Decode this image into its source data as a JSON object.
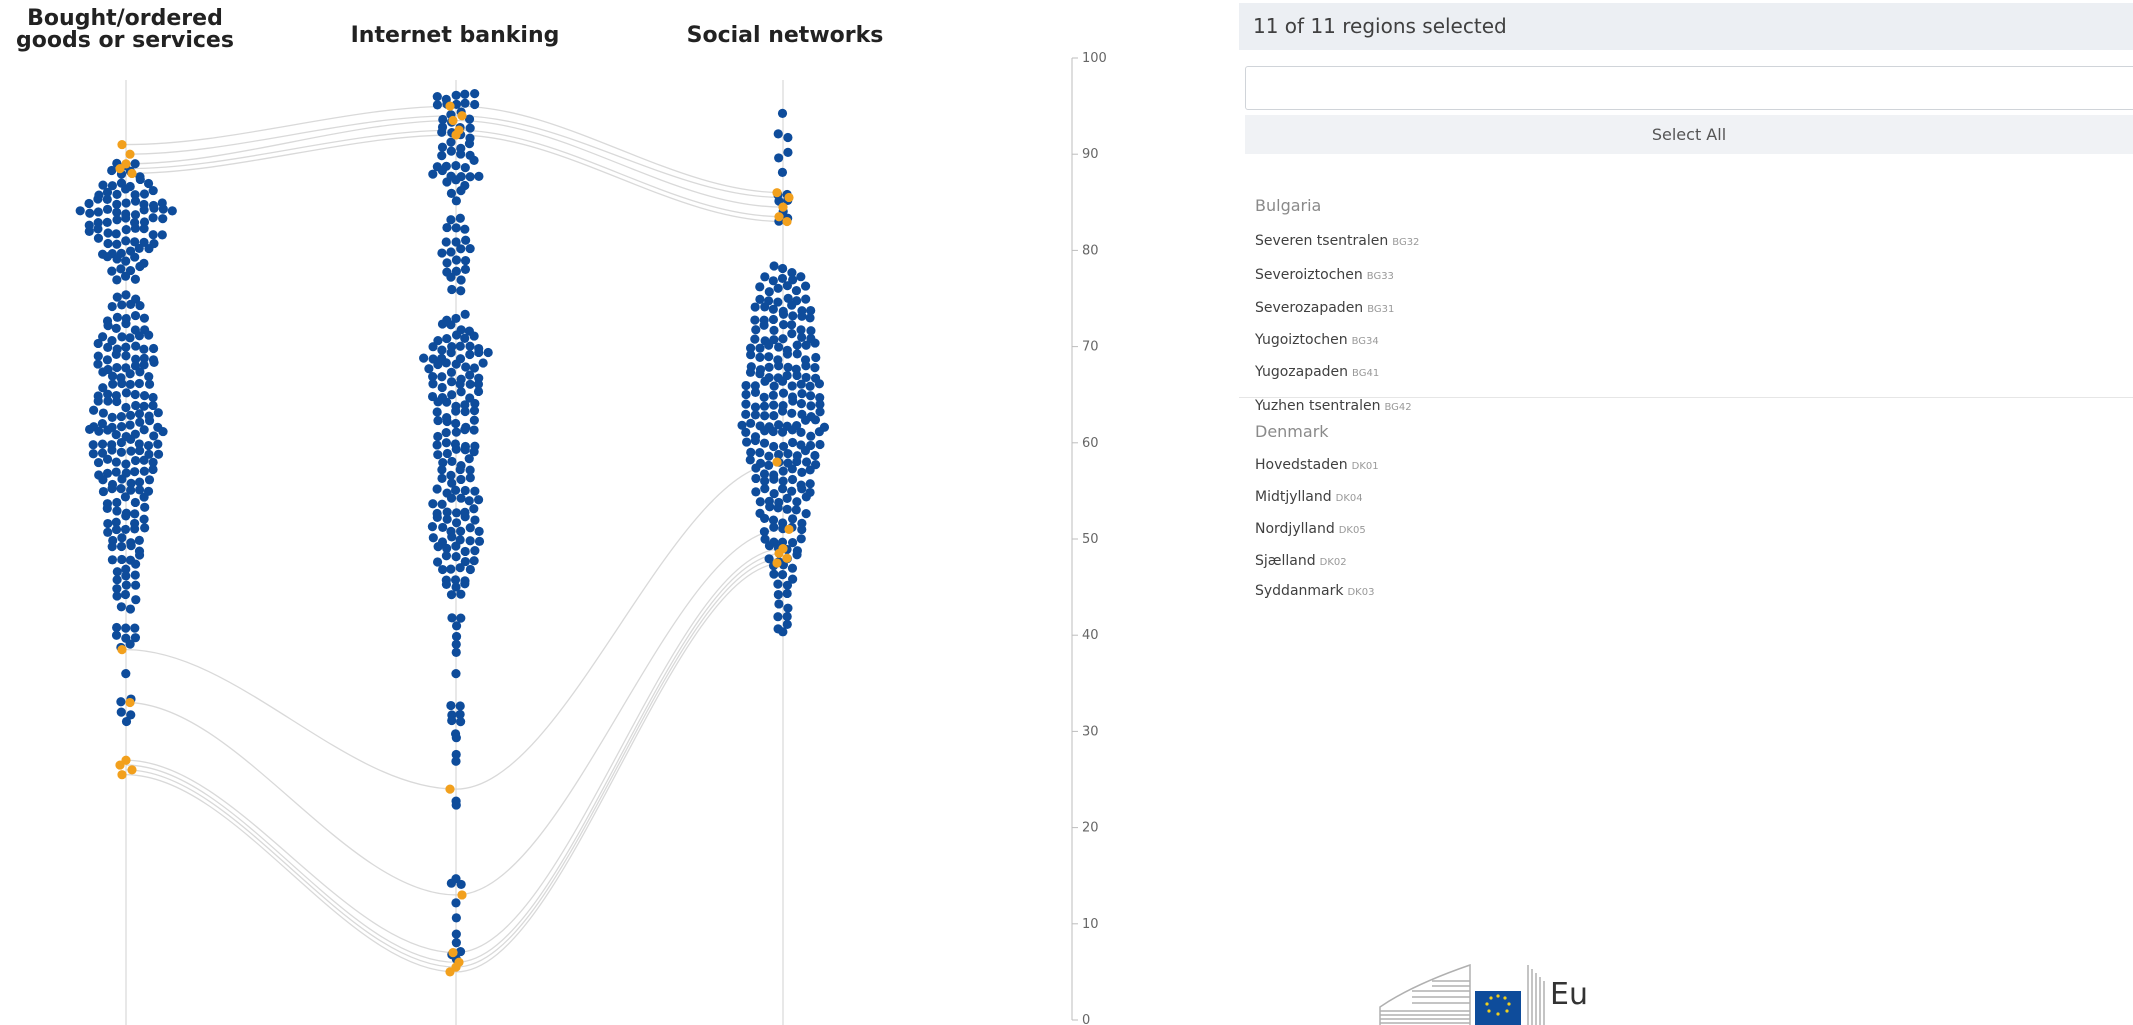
{
  "chart_data": {
    "type": "scatter",
    "subtype": "parallel beeswarm",
    "ylim": [
      0,
      100
    ],
    "yticks": [
      "100",
      "90",
      "80",
      "70",
      "60",
      "50",
      "40",
      "30",
      "20",
      "10",
      "0"
    ],
    "categories": [
      "Bought/ordered goods or services",
      "Internet banking",
      "Social networks"
    ],
    "colors": {
      "base": "#0e4c9b",
      "highlight": "#f2a01d",
      "link": "#d9d9d9",
      "axis": "#d0d0d0"
    },
    "highlighted_regions": [
      {
        "values": [
          91,
          95,
          86
        ]
      },
      {
        "values": [
          90,
          94,
          85.5
        ]
      },
      {
        "values": [
          89,
          93.5,
          84.5
        ]
      },
      {
        "values": [
          88.5,
          92.5,
          83.5
        ]
      },
      {
        "values": [
          88,
          92,
          83
        ]
      },
      {
        "values": [
          38.5,
          24,
          58
        ]
      },
      {
        "values": [
          33,
          13,
          51
        ]
      },
      {
        "values": [
          27,
          7,
          49
        ]
      },
      {
        "values": [
          26.5,
          6,
          48.5
        ]
      },
      {
        "values": [
          26,
          5.5,
          48
        ]
      },
      {
        "values": [
          25.5,
          5,
          47.5
        ]
      }
    ]
  },
  "region_panel": {
    "header": "11 of 11 regions selected",
    "search_value": "",
    "select_all_label": "Select All",
    "groups": [
      {
        "name": "Bulgaria",
        "regions": [
          {
            "name": "Severen tsentralen",
            "code": "BG32"
          },
          {
            "name": "Severoiztochen",
            "code": "BG33"
          },
          {
            "name": "Severozapaden",
            "code": "BG31"
          },
          {
            "name": "Yugoiztochen",
            "code": "BG34"
          },
          {
            "name": "Yugozapaden",
            "code": "BG41"
          },
          {
            "name": "Yuzhen tsentralen",
            "code": "BG42"
          }
        ]
      },
      {
        "name": "Denmark",
        "regions": [
          {
            "name": "Hovedstaden",
            "code": "DK01"
          },
          {
            "name": "Midtjylland",
            "code": "DK04"
          },
          {
            "name": "Nordjylland",
            "code": "DK05"
          },
          {
            "name": "Sjælland",
            "code": "DK02"
          },
          {
            "name": "Syddanmark",
            "code": "DK03"
          }
        ]
      }
    ]
  },
  "footer": {
    "logo_text": "Eu"
  }
}
